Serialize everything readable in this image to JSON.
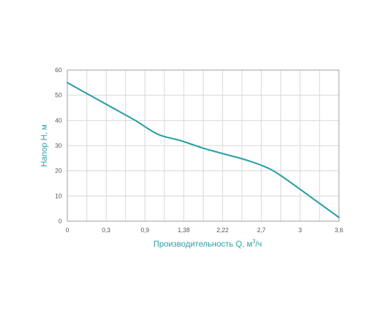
{
  "chart_data": {
    "type": "line",
    "x_axis_title": "Производительность Q, м",
    "x_axis_title_sup": "3",
    "x_axis_title_unit": "/ч",
    "ylabel": "Напор H, м",
    "xticks": [
      "0",
      "0,3",
      "0,9",
      "1,38",
      "2,22",
      "2,7",
      "3",
      "3,6"
    ],
    "yticks": [
      "0",
      "10",
      "20",
      "30",
      "40",
      "50",
      "60"
    ],
    "ylim": [
      0,
      60
    ],
    "vertical_gridlines": 14,
    "grid": true,
    "series": [
      {
        "x": [
          0,
          0.3,
          0.6,
          0.9,
          1.2,
          1.5,
          1.8,
          2.1,
          2.4,
          2.7,
          3.0,
          3.3,
          3.6
        ],
        "y": [
          55,
          50,
          45,
          40,
          34.5,
          32,
          29,
          26.5,
          24,
          20.5,
          14.5,
          8,
          1.5
        ]
      }
    ],
    "line_color": "#2a9fa6"
  }
}
